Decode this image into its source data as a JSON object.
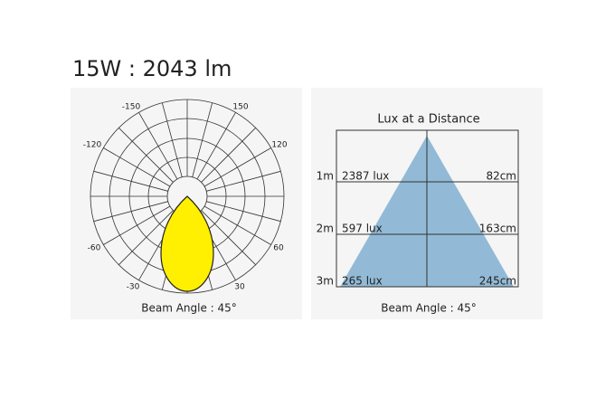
{
  "title": "15W : 2043 lm",
  "polar": {
    "angle_labels": [
      "-150",
      "150",
      "-120",
      "120",
      "-60",
      "60",
      "-30",
      "30"
    ],
    "caption": "Beam Angle : 45°"
  },
  "lux": {
    "title": "Lux at a Distance",
    "rows": [
      {
        "distance": "1m",
        "lux": "2387 lux",
        "diameter": "82cm"
      },
      {
        "distance": "2m",
        "lux": "597 lux",
        "diameter": "163cm"
      },
      {
        "distance": "3m",
        "lux": "265 lux",
        "diameter": "245cm"
      }
    ],
    "caption": "Beam Angle : 45°"
  }
}
